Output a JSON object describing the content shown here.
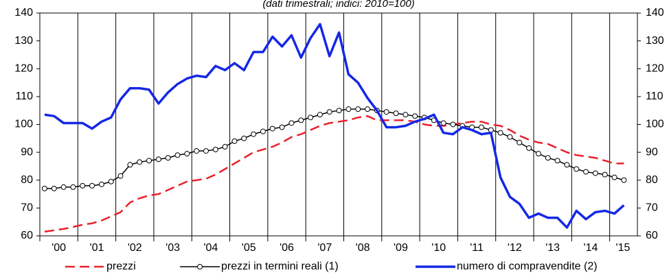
{
  "chart_data": {
    "type": "line",
    "subtitle": "(dati trimestrali; indici: 2010=100)",
    "x": [
      2000.125,
      2000.375,
      2000.625,
      2000.875,
      2001.125,
      2001.375,
      2001.625,
      2001.875,
      2002.125,
      2002.375,
      2002.625,
      2002.875,
      2003.125,
      2003.375,
      2003.625,
      2003.875,
      2004.125,
      2004.375,
      2004.625,
      2004.875,
      2005.125,
      2005.375,
      2005.625,
      2005.875,
      2006.125,
      2006.375,
      2006.625,
      2006.875,
      2007.125,
      2007.375,
      2007.625,
      2007.875,
      2008.125,
      2008.375,
      2008.625,
      2008.875,
      2009.125,
      2009.375,
      2009.625,
      2009.875,
      2010.125,
      2010.375,
      2010.625,
      2010.875,
      2011.125,
      2011.375,
      2011.625,
      2011.875,
      2012.125,
      2012.375,
      2012.625,
      2012.875,
      2013.125,
      2013.375,
      2013.625,
      2013.875,
      2014.125,
      2014.375,
      2014.625,
      2014.875,
      2015.125,
      2015.375
    ],
    "series": [
      {
        "name": "prezzi",
        "color": "#e8202a",
        "line_style": "dashed",
        "marker": "none",
        "values": [
          61.5,
          62,
          62.5,
          63.2,
          64,
          64.5,
          65.5,
          67,
          68.5,
          72,
          73.5,
          74.5,
          75,
          76.5,
          78,
          79.5,
          80,
          80.5,
          82,
          84,
          86,
          88,
          90,
          91,
          92,
          93.5,
          95.5,
          96.5,
          98,
          99.5,
          100.5,
          101,
          101.5,
          102.5,
          103,
          101.5,
          101.5,
          101.5,
          101.5,
          101,
          100,
          99.5,
          99.5,
          100,
          100.5,
          101,
          101,
          100,
          99.5,
          98,
          96,
          94.5,
          93.5,
          93,
          91.5,
          90,
          89,
          88.5,
          88,
          87,
          86,
          86
        ]
      },
      {
        "name": "prezzi in termini reali (1)",
        "color": "#000000",
        "line_style": "solid",
        "marker": "circle",
        "values": [
          77,
          77,
          77.5,
          77.5,
          78,
          78,
          78.5,
          79.5,
          81.5,
          85.5,
          86.5,
          87,
          87.5,
          88,
          89,
          89.5,
          90.5,
          90.5,
          91,
          92,
          94,
          95,
          96.5,
          97.5,
          98.5,
          99,
          100.5,
          101.5,
          102.5,
          103.5,
          104.5,
          105,
          105.5,
          105.5,
          105.5,
          105,
          104.5,
          104,
          103.5,
          103,
          102.5,
          101.5,
          100.5,
          100,
          99.5,
          99,
          99,
          98,
          97,
          95.5,
          93.5,
          91.5,
          89.5,
          88,
          87,
          85.5,
          84,
          83,
          82.5,
          82,
          81,
          80
        ]
      },
      {
        "name": "numero di compravendite (2)",
        "color": "#1428e6",
        "line_style": "solid",
        "marker": "none",
        "values": [
          103.5,
          103,
          100.5,
          100.5,
          100.5,
          98.5,
          101,
          102.5,
          109,
          113,
          113,
          112.5,
          107.5,
          111.5,
          114.5,
          116.5,
          117.5,
          117,
          121,
          119.5,
          122,
          119.5,
          126,
          126,
          131.5,
          128,
          132,
          124,
          131,
          136,
          124.5,
          133,
          118,
          115,
          109.5,
          105,
          99,
          99,
          99.5,
          101,
          102,
          103.5,
          97,
          96.5,
          99,
          98,
          96.5,
          97,
          81,
          74,
          71.5,
          66.5,
          68,
          66.5,
          66.5,
          63,
          69,
          66,
          68.5,
          69,
          68,
          71
        ]
      }
    ],
    "xlim": [
      2000,
      2015.73
    ],
    "xticks": [
      {
        "value": 2000.5,
        "label": "'00"
      },
      {
        "value": 2001.5,
        "label": "'01"
      },
      {
        "value": 2002.5,
        "label": "'02"
      },
      {
        "value": 2003.5,
        "label": "'03"
      },
      {
        "value": 2004.5,
        "label": "'04"
      },
      {
        "value": 2005.5,
        "label": "'05"
      },
      {
        "value": 2006.5,
        "label": "'06"
      },
      {
        "value": 2007.5,
        "label": "'07"
      },
      {
        "value": 2008.5,
        "label": "'08"
      },
      {
        "value": 2009.5,
        "label": "'09"
      },
      {
        "value": 2010.5,
        "label": "'10"
      },
      {
        "value": 2011.5,
        "label": "'11"
      },
      {
        "value": 2012.5,
        "label": "'12"
      },
      {
        "value": 2013.5,
        "label": "'13"
      },
      {
        "value": 2014.5,
        "label": "'14"
      },
      {
        "value": 2015.35,
        "label": "'15"
      }
    ],
    "ylim": [
      60,
      140
    ],
    "yticks": [
      60,
      70,
      80,
      90,
      100,
      110,
      120,
      130,
      140
    ],
    "y2lim": [
      60,
      140
    ],
    "y2ticks": [
      60,
      70,
      80,
      90,
      100,
      110,
      120,
      130,
      140
    ],
    "grid": "x",
    "legend": "bottom"
  }
}
